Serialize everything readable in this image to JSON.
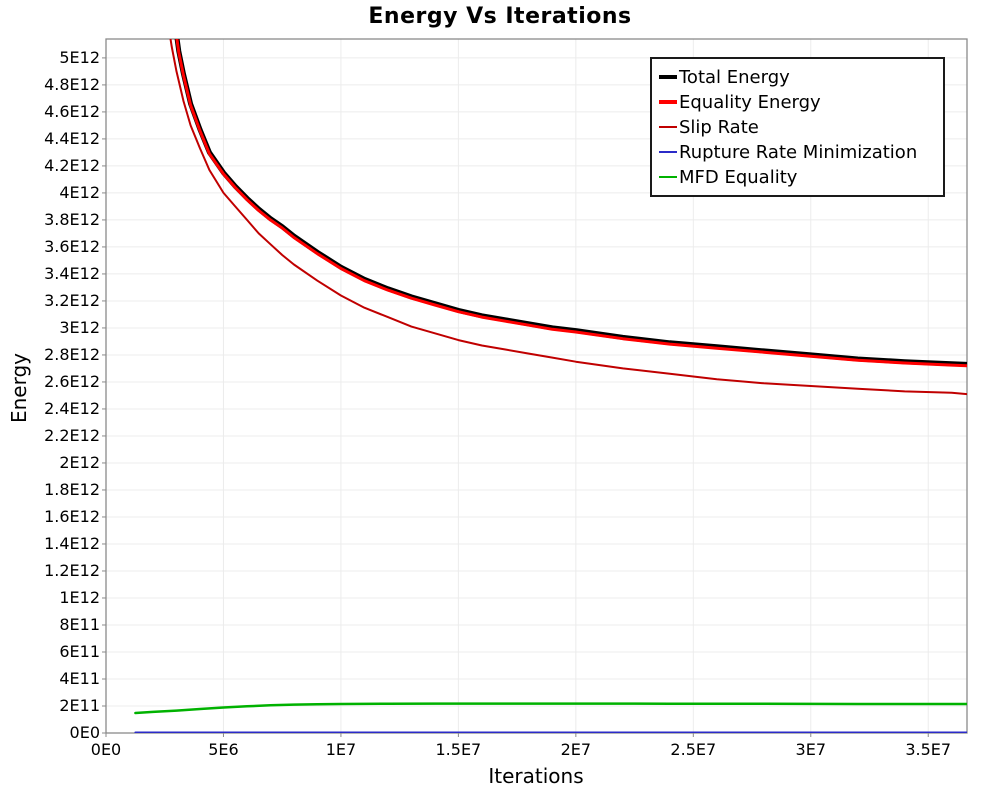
{
  "title": "Energy Vs Iterations",
  "x_axis": {
    "label": "Iterations",
    "tick_labels": [
      "0E0",
      "5E6",
      "1E7",
      "1.5E7",
      "2E7",
      "2.5E7",
      "3E7",
      "3.5E7"
    ],
    "tick_values_millions": [
      0,
      5,
      10,
      15,
      20,
      25,
      30,
      35
    ],
    "max_millions": 36.65
  },
  "y_axis": {
    "label": "Energy",
    "tick_labels": [
      "0E0",
      "2E11",
      "4E11",
      "6E11",
      "8E11",
      "1E12",
      "1.2E12",
      "1.4E12",
      "1.6E12",
      "1.8E12",
      "2E12",
      "2.2E12",
      "2.4E12",
      "2.6E12",
      "2.8E12",
      "3E12",
      "3.2E12",
      "3.4E12",
      "3.6E12",
      "3.8E12",
      "4E12",
      "4.2E12",
      "4.4E12",
      "4.6E12",
      "4.8E12",
      "5E12"
    ],
    "tick_values_e12": [
      0,
      0.2,
      0.4,
      0.6,
      0.8,
      1.0,
      1.2,
      1.4,
      1.6,
      1.8,
      2.0,
      2.2,
      2.4,
      2.6,
      2.8,
      3.0,
      3.2,
      3.4,
      3.6,
      3.8,
      4.0,
      4.2,
      4.4,
      4.6,
      4.8,
      5.0
    ],
    "max_e12": 5.14
  },
  "legend": {
    "items": [
      {
        "label": "Total Energy",
        "color": "#000000",
        "thickness": 4
      },
      {
        "label": "Equality Energy",
        "color": "#ff0000",
        "thickness": 4
      },
      {
        "label": "Slip Rate",
        "color": "#c00000",
        "thickness": 2
      },
      {
        "label": "Rupture Rate Minimization",
        "color": "#2b2bc8",
        "thickness": 2
      },
      {
        "label": "MFD Equality",
        "color": "#00b200",
        "thickness": 2
      }
    ]
  },
  "colors": {
    "grid": "#ececec",
    "plot_border": "#8a8a8a",
    "tick_mark": "#8a8a8a",
    "background": "#ffffff"
  },
  "chart_data": {
    "type": "line",
    "title": "Energy Vs Iterations",
    "xlabel": "Iterations",
    "ylabel": "Energy",
    "xlim_iterations": [
      0,
      36650000
    ],
    "ylim_energy": [
      0,
      5140000000000
    ],
    "grid": true,
    "legend_position": "top-right",
    "x_units": "iterations (millions)",
    "y_units": "energy (1E12)",
    "series": [
      {
        "name": "Total Energy",
        "color": "#000000",
        "stroke_width": 5,
        "x_millions": [
          2.9,
          3.1,
          3.3,
          3.6,
          4.0,
          4.4,
          5.0,
          5.5,
          6.0,
          6.5,
          7.0,
          7.5,
          8.0,
          9.0,
          10,
          11,
          12,
          13,
          14,
          15,
          16,
          17,
          18,
          19,
          20,
          22,
          24,
          26,
          28,
          30,
          32,
          34,
          36,
          36.65
        ],
        "y_e12": [
          5.3,
          5.05,
          4.88,
          4.66,
          4.47,
          4.3,
          4.15,
          4.05,
          3.96,
          3.88,
          3.81,
          3.75,
          3.68,
          3.56,
          3.45,
          3.36,
          3.29,
          3.23,
          3.18,
          3.13,
          3.09,
          3.06,
          3.03,
          3.0,
          2.98,
          2.93,
          2.89,
          2.86,
          2.83,
          2.8,
          2.77,
          2.75,
          2.735,
          2.73
        ]
      },
      {
        "name": "Equality Energy",
        "color": "#ff0000",
        "stroke_width": 3,
        "x_millions": [
          2.9,
          3.1,
          3.3,
          3.6,
          4.0,
          4.4,
          5.0,
          5.5,
          6.0,
          6.5,
          7.0,
          7.5,
          8.0,
          9.0,
          10,
          11,
          12,
          13,
          14,
          15,
          16,
          17,
          18,
          19,
          20,
          22,
          24,
          26,
          28,
          30,
          32,
          34,
          36,
          36.65
        ],
        "y_e12": [
          5.29,
          5.04,
          4.87,
          4.65,
          4.46,
          4.29,
          4.14,
          4.04,
          3.95,
          3.87,
          3.8,
          3.74,
          3.67,
          3.55,
          3.44,
          3.35,
          3.28,
          3.22,
          3.17,
          3.12,
          3.08,
          3.05,
          3.02,
          2.99,
          2.97,
          2.92,
          2.88,
          2.85,
          2.82,
          2.79,
          2.76,
          2.74,
          2.725,
          2.72
        ]
      },
      {
        "name": "Slip Rate",
        "color": "#c00000",
        "stroke_width": 2,
        "x_millions": [
          2.6,
          2.8,
          3.0,
          3.3,
          3.6,
          4.0,
          4.4,
          5.0,
          5.5,
          6.0,
          6.5,
          7.0,
          7.5,
          8.0,
          9.0,
          10,
          11,
          12,
          13,
          14,
          15,
          16,
          17,
          18,
          19,
          20,
          22,
          24,
          26,
          28,
          30,
          32,
          34,
          36,
          36.65
        ],
        "y_e12": [
          5.3,
          5.08,
          4.9,
          4.68,
          4.5,
          4.33,
          4.17,
          4.0,
          3.9,
          3.8,
          3.7,
          3.62,
          3.54,
          3.47,
          3.35,
          3.24,
          3.15,
          3.08,
          3.01,
          2.96,
          2.91,
          2.87,
          2.84,
          2.81,
          2.78,
          2.75,
          2.7,
          2.66,
          2.62,
          2.59,
          2.57,
          2.55,
          2.53,
          2.52,
          2.51
        ]
      },
      {
        "name": "Rupture Rate Minimization",
        "color": "#2b2bc8",
        "stroke_width": 2,
        "x_millions": [
          1.25,
          36.65
        ],
        "y_e12": [
          0.004,
          0.004
        ]
      },
      {
        "name": "MFD Equality",
        "color": "#00b200",
        "stroke_width": 2.5,
        "x_millions": [
          1.25,
          2,
          3,
          4,
          5,
          6,
          7,
          8,
          9,
          10,
          12,
          14,
          16,
          18,
          20,
          24,
          28,
          32,
          36.65
        ],
        "y_e12": [
          0.148,
          0.156,
          0.166,
          0.178,
          0.189,
          0.198,
          0.205,
          0.21,
          0.213,
          0.215,
          0.217,
          0.218,
          0.218,
          0.218,
          0.218,
          0.217,
          0.216,
          0.215,
          0.215
        ]
      }
    ]
  }
}
